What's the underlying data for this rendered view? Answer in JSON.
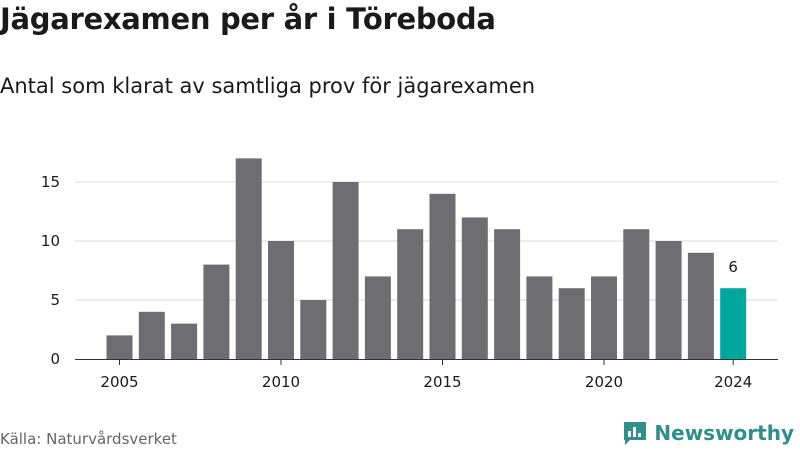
{
  "title": "Jägarexamen per år i Töreboda",
  "subtitle": "Antal som klarat av samtliga prov för jägarexamen",
  "source": "Källa: Naturvårdsverket",
  "brand": {
    "name": "Newsworthy",
    "icon": "newsworthy-logo-icon"
  },
  "colors": {
    "bar": "#6e6d72",
    "highlight": "#00a79d",
    "grid": "#d9d9d9",
    "brand": "#2f8f8a"
  },
  "chart_data": {
    "type": "bar",
    "x": [
      2005,
      2006,
      2007,
      2008,
      2009,
      2010,
      2011,
      2012,
      2013,
      2014,
      2015,
      2016,
      2017,
      2018,
      2019,
      2020,
      2021,
      2022,
      2023,
      2024
    ],
    "values": [
      2,
      4,
      3,
      8,
      17,
      10,
      5,
      15,
      7,
      11,
      14,
      12,
      11,
      7,
      6,
      7,
      11,
      10,
      9,
      6
    ],
    "highlight_x": 2024,
    "data_labels": [
      {
        "x": 2024,
        "text": "6"
      }
    ],
    "xticks": [
      "2005",
      "2010",
      "2015",
      "2020",
      "2024"
    ],
    "yticks": [
      "0",
      "5",
      "10",
      "15"
    ],
    "ylim": [
      0,
      17
    ],
    "grid": true,
    "xlabel": "",
    "ylabel": ""
  }
}
